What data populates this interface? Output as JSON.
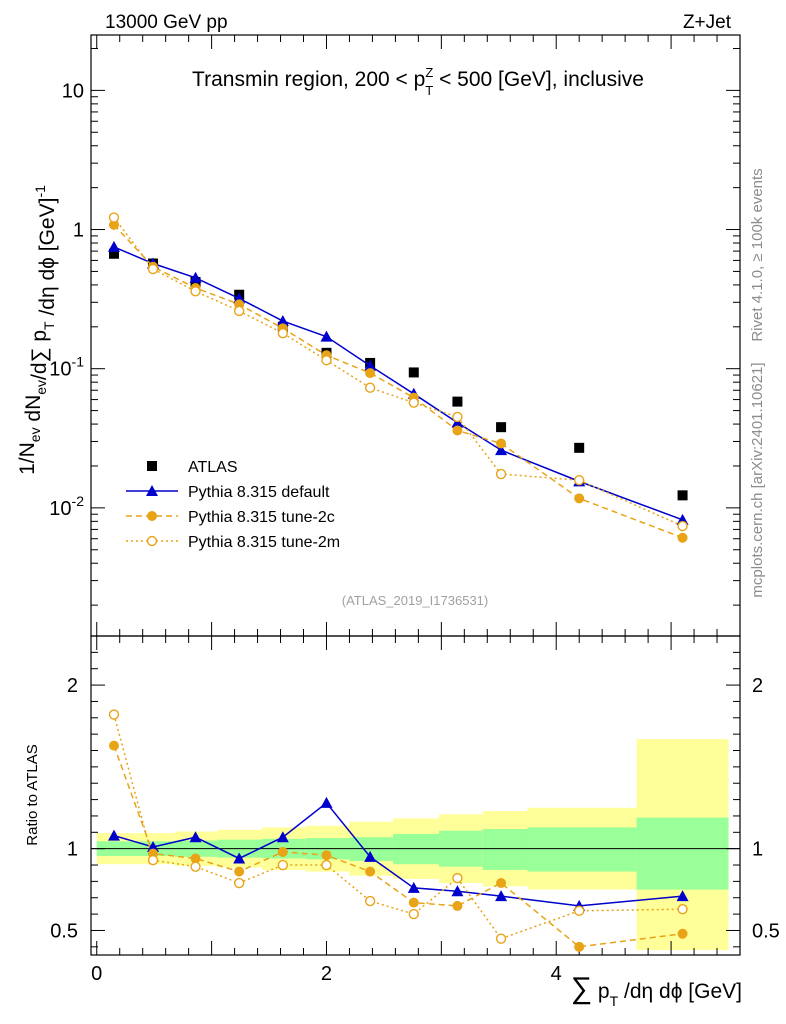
{
  "header": {
    "left": "13000 GeV pp",
    "right": "Z+Jet"
  },
  "side_labels": {
    "rivet": "Rivet 4.1.0, ≥ 100k events",
    "mcplots": "mcplots.cern.ch [arXiv:2401.10621]"
  },
  "chart_data": [
    {
      "type": "scatter",
      "title": "Transmin region, 200 < p_T^Z < 500 [GeV], inclusive",
      "watermark": "(ATLAS_2019_I1736531)",
      "ylabel": "1/N_ev dN_ev/d∑ p_T /dη dϕ [GeV]^-1",
      "ylog": true,
      "ylim": [
        0.0012,
        25
      ],
      "xlim": [
        -0.05,
        5.6
      ],
      "y_ticks": [
        {
          "value": 10,
          "label": "10"
        },
        {
          "value": 1,
          "label": "1"
        },
        {
          "value": 0.1,
          "label": "10^-1"
        },
        {
          "value": 0.01,
          "label": "10^-2"
        }
      ],
      "x": [
        0.15,
        0.49,
        0.86,
        1.24,
        1.62,
        2.0,
        2.38,
        2.76,
        3.14,
        3.52,
        4.2,
        5.1
      ],
      "series": [
        {
          "name": "ATLAS",
          "color": "#000000",
          "marker": "square",
          "line": "none",
          "values": [
            0.67,
            0.57,
            0.42,
            0.34,
            0.2,
            0.13,
            0.11,
            0.094,
            0.058,
            0.038,
            0.027,
            0.0123
          ]
        },
        {
          "name": "Pythia 8.315 default",
          "color": "#0000cc",
          "marker": "triangle",
          "line": "solid",
          "values": [
            0.75,
            0.57,
            0.45,
            0.32,
            0.22,
            0.17,
            0.105,
            0.066,
            0.041,
            0.026,
            0.0155,
            0.0082
          ]
        },
        {
          "name": "Pythia 8.315 tune-2c",
          "color": "#e8a317",
          "marker": "circle",
          "line": "dashed",
          "values": [
            1.08,
            0.54,
            0.38,
            0.29,
            0.195,
            0.125,
            0.093,
            0.062,
            0.036,
            0.029,
            0.0117,
            0.0061
          ]
        },
        {
          "name": "Pythia 8.315 tune-2m",
          "color": "#e8a317",
          "marker": "open-circle",
          "line": "dotted",
          "values": [
            1.22,
            0.52,
            0.36,
            0.26,
            0.18,
            0.115,
            0.073,
            0.057,
            0.045,
            0.0175,
            0.0158,
            0.0074
          ]
        }
      ]
    },
    {
      "type": "scatter",
      "ylabel": "Ratio to ATLAS",
      "xlabel": "∑ p_T /dη dϕ [GeV]",
      "ylim": [
        0.35,
        2.3
      ],
      "xlim": [
        -0.05,
        5.6
      ],
      "x_ticks": [
        0,
        2,
        4
      ],
      "y_ticks": [
        0.5,
        1,
        2
      ],
      "x": [
        0.15,
        0.49,
        0.86,
        1.24,
        1.62,
        2.0,
        2.38,
        2.76,
        3.14,
        3.52,
        4.2,
        5.1
      ],
      "bands": {
        "edges": [
          0.0,
          0.35,
          0.68,
          1.05,
          1.44,
          1.82,
          2.2,
          2.58,
          2.98,
          3.36,
          3.75,
          4.7,
          5.5
        ],
        "stat_low": [
          0.955,
          0.955,
          0.95,
          0.945,
          0.94,
          0.935,
          0.925,
          0.905,
          0.89,
          0.87,
          0.86,
          0.75
        ],
        "stat_high": [
          1.045,
          1.045,
          1.05,
          1.055,
          1.06,
          1.065,
          1.07,
          1.09,
          1.11,
          1.12,
          1.13,
          1.19
        ],
        "syst_low": [
          0.905,
          0.905,
          0.895,
          0.885,
          0.87,
          0.86,
          0.835,
          0.815,
          0.79,
          0.77,
          0.75,
          0.38
        ],
        "syst_high": [
          1.095,
          1.095,
          1.105,
          1.115,
          1.13,
          1.14,
          1.165,
          1.185,
          1.21,
          1.23,
          1.25,
          1.67
        ]
      },
      "series": [
        {
          "name": "Pythia 8.315 default",
          "color": "#0000cc",
          "marker": "triangle",
          "line": "solid",
          "values": [
            1.08,
            1.01,
            1.07,
            0.94,
            1.07,
            1.28,
            0.95,
            0.76,
            0.74,
            0.71,
            0.65,
            0.71
          ]
        },
        {
          "name": "Pythia 8.315 tune-2c",
          "color": "#e8a317",
          "marker": "circle",
          "line": "dashed",
          "values": [
            1.63,
            0.97,
            0.94,
            0.86,
            0.98,
            0.96,
            0.86,
            0.67,
            0.65,
            0.79,
            0.4,
            0.48
          ]
        },
        {
          "name": "Pythia 8.315 tune-2m",
          "color": "#e8a317",
          "marker": "open-circle",
          "line": "dotted",
          "values": [
            1.82,
            0.93,
            0.89,
            0.79,
            0.9,
            0.9,
            0.68,
            0.6,
            0.82,
            0.45,
            0.62,
            0.63
          ]
        }
      ]
    }
  ]
}
